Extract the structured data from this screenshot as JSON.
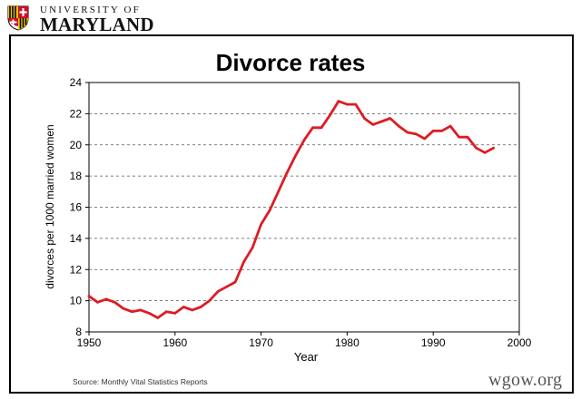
{
  "logo": {
    "top_text": "UNIVERSITY OF",
    "bottom_text": "MARYLAND"
  },
  "source_text": "Source: Monthly Vital Statistics Reports",
  "watermark_text": "wgow.org",
  "colors": {
    "line": "#dd1c24",
    "grid": "#555555",
    "maryland_red": "#c8102e",
    "maryland_gold": "#f2c400"
  },
  "chart_data": {
    "type": "line",
    "title": "Divorce rates",
    "xlabel": "Year",
    "ylabel": "divorces per 1000 married women",
    "xlim": [
      1950,
      2000
    ],
    "ylim": [
      8,
      24
    ],
    "xticks": [
      1950,
      1960,
      1970,
      1980,
      1990,
      2000
    ],
    "yticks": [
      8,
      10,
      12,
      14,
      16,
      18,
      20,
      22,
      24
    ],
    "grid": "horizontal dashed",
    "x": [
      1950,
      1951,
      1952,
      1953,
      1954,
      1955,
      1956,
      1957,
      1958,
      1959,
      1960,
      1961,
      1962,
      1963,
      1964,
      1965,
      1966,
      1967,
      1968,
      1969,
      1970,
      1971,
      1972,
      1973,
      1974,
      1975,
      1976,
      1977,
      1978,
      1979,
      1980,
      1981,
      1982,
      1983,
      1984,
      1985,
      1986,
      1987,
      1988,
      1989,
      1990,
      1991,
      1992,
      1993,
      1994,
      1995,
      1996,
      1997
    ],
    "series": [
      {
        "values": [
          10.3,
          9.9,
          10.1,
          9.9,
          9.5,
          9.3,
          9.4,
          9.2,
          8.9,
          9.3,
          9.2,
          9.6,
          9.4,
          9.6,
          10.0,
          10.6,
          10.9,
          11.2,
          12.5,
          13.4,
          14.9,
          15.8,
          17.0,
          18.2,
          19.3,
          20.3,
          21.1,
          21.1,
          21.9,
          22.8,
          22.6,
          22.6,
          21.7,
          21.3,
          21.5,
          21.7,
          21.2,
          20.8,
          20.7,
          20.4,
          20.9,
          20.9,
          21.2,
          20.5,
          20.5,
          19.8,
          19.5,
          19.8
        ]
      }
    ]
  }
}
